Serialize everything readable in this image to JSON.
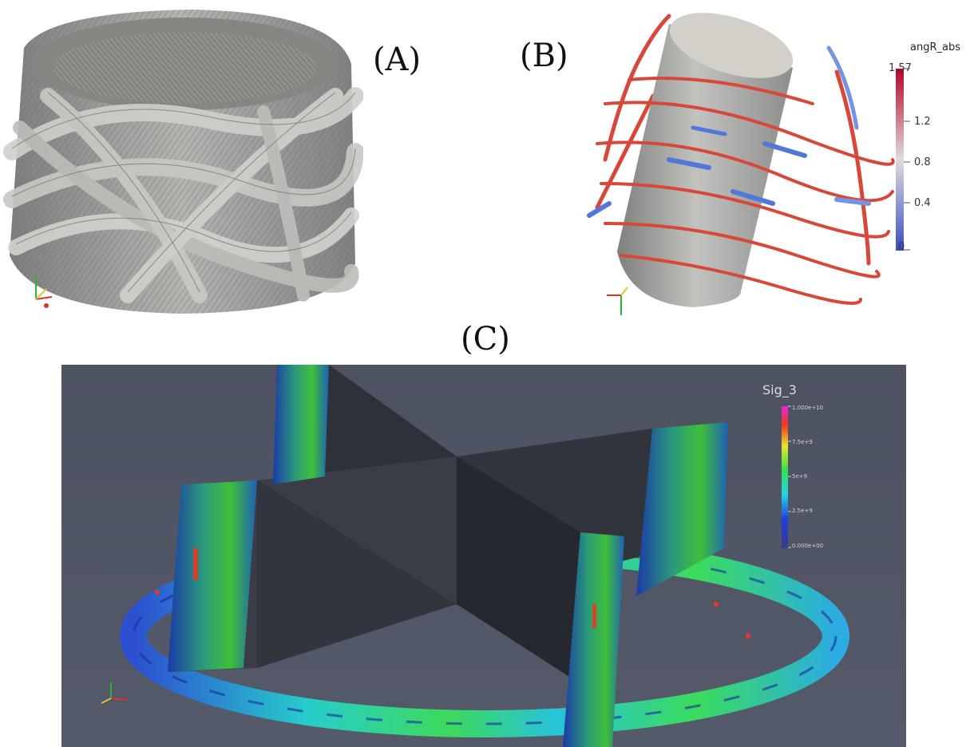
{
  "panels": {
    "a": {
      "label": "(A)"
    },
    "b": {
      "label": "(B)",
      "colorbar": {
        "title": "angR_abs",
        "max": "1.57",
        "ticks": [
          "1.2",
          "0.8",
          "0.4"
        ],
        "min": "0"
      }
    },
    "c": {
      "label": "(C)",
      "colorbar": {
        "title": "Sig_3",
        "max": "1.000e+10",
        "ticks": [
          "7.5e+9",
          "5e+9",
          "2.5e+9"
        ],
        "min": "0.000e+00"
      }
    }
  },
  "colors": {
    "background_c": "#4f5462",
    "mesh_gray": "#9a9a98",
    "cylinder_gray": "#a9a9a7",
    "fiber_red": "#d8483a",
    "fiber_blue": "#4f78d8"
  },
  "axis_triad": {
    "x": "x",
    "y": "y",
    "z": "z"
  }
}
